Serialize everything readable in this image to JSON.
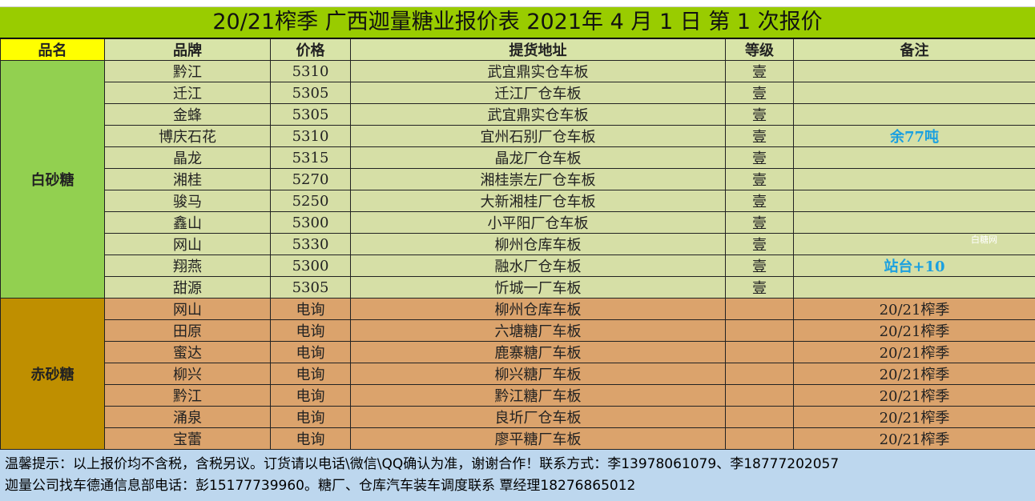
{
  "title": "20/21榨季 广西迦量糖业报价表 2021年 4 月 1 日 第 1 次报价",
  "headers": [
    "品名",
    "品牌",
    "价格",
    "提货地址",
    "等级",
    "备注"
  ],
  "white": {
    "category": "白砂糖",
    "rows": [
      [
        "黔江",
        "5310",
        "武宜鼎实仓车板",
        "壹",
        ""
      ],
      [
        "迁江",
        "5305",
        "迁江厂仓车板",
        "壹",
        ""
      ],
      [
        "金蜂",
        "5305",
        "武宜鼎实仓车板",
        "壹",
        ""
      ],
      [
        "博庆石花",
        "5310",
        "宜州石别厂仓车板",
        "壹",
        "余77吨"
      ],
      [
        "晶龙",
        "5315",
        "晶龙厂仓车板",
        "壹",
        ""
      ],
      [
        "湘桂",
        "5270",
        "湘桂崇左厂仓车板",
        "壹",
        ""
      ],
      [
        "骏马",
        "5250",
        "大新湘桂厂仓车板",
        "壹",
        ""
      ],
      [
        "鑫山",
        "5300",
        "小平阳厂仓车板",
        "壹",
        ""
      ],
      [
        "网山",
        "5330",
        "柳州仓库车板",
        "壹",
        ""
      ],
      [
        "翔燕",
        "5300",
        "融水厂仓车板",
        "壹",
        "站台+10"
      ],
      [
        "甜源",
        "5305",
        "忻城一厂车板",
        "壹",
        ""
      ]
    ]
  },
  "red": {
    "category": "赤砂糖",
    "rows": [
      [
        "网山",
        "电询",
        "柳州仓库车板",
        "",
        "20/21榨季"
      ],
      [
        "田原",
        "电询",
        "六塘糖厂车板",
        "",
        "20/21榨季"
      ],
      [
        "蜜达",
        "电询",
        "鹿寨糖厂车板",
        "",
        "20/21榨季"
      ],
      [
        "柳兴",
        "电询",
        "柳兴糖厂车板",
        "",
        "20/21榨季"
      ],
      [
        "黔江",
        "电询",
        "黔江糖厂车板",
        "",
        "20/21榨季"
      ],
      [
        "涌泉",
        "电询",
        "良圻厂仓车板",
        "",
        "20/21榨季"
      ],
      [
        "宝蕾",
        "电询",
        "廖平糖厂车板",
        "",
        "20/21榨季"
      ]
    ]
  },
  "footer": [
    "温馨提示：以上报价均不含税，含税另议。订货请以电话\\微信\\QQ确认为准，谢谢合作！联系方式：李13978061079、李18777202057",
    "迦量公司找车德通信息部电话：彭15177739960。糖厂、仓库汽车装车调度联系 覃经理18276865012"
  ],
  "watermark": "白糖网"
}
